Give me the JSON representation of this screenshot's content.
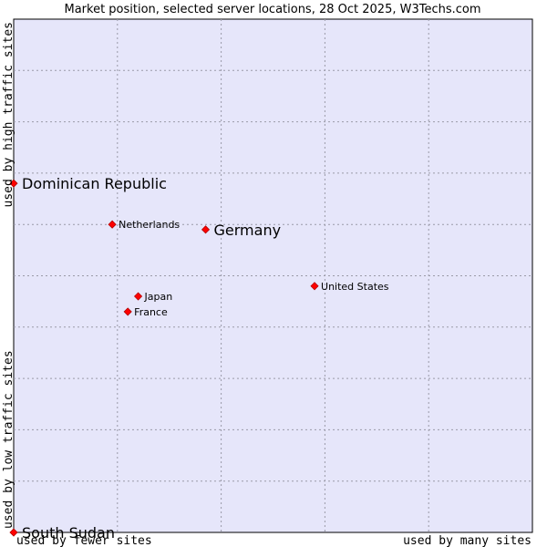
{
  "colors": {
    "plot_background": "#e6e6fa",
    "point": "#ff0000",
    "point_outline": "#b30000"
  },
  "chart_data": {
    "type": "scatter",
    "title": "Market position, selected server locations, 28 Oct 2025, W3Techs.com",
    "xlabel_low": "used by fewer sites",
    "xlabel_high": "used by many sites",
    "ylabel_low": "used by low traffic sites",
    "ylabel_high": "used by high traffic sites",
    "xlim": [
      0,
      10
    ],
    "ylim": [
      0,
      10
    ],
    "grid": true,
    "points": [
      {
        "label": "Dominican Republic",
        "x": 0.0,
        "y": 6.8,
        "emphasis": true
      },
      {
        "label": "Germany",
        "x": 3.7,
        "y": 5.9,
        "emphasis": true
      },
      {
        "label": "South Sudan",
        "x": 0.0,
        "y": 0.0,
        "emphasis": true
      },
      {
        "label": "Netherlands",
        "x": 1.9,
        "y": 6.0,
        "emphasis": false
      },
      {
        "label": "United States",
        "x": 5.8,
        "y": 4.8,
        "emphasis": false
      },
      {
        "label": "Japan",
        "x": 2.4,
        "y": 4.6,
        "emphasis": false
      },
      {
        "label": "France",
        "x": 2.2,
        "y": 4.3,
        "emphasis": false
      }
    ]
  }
}
